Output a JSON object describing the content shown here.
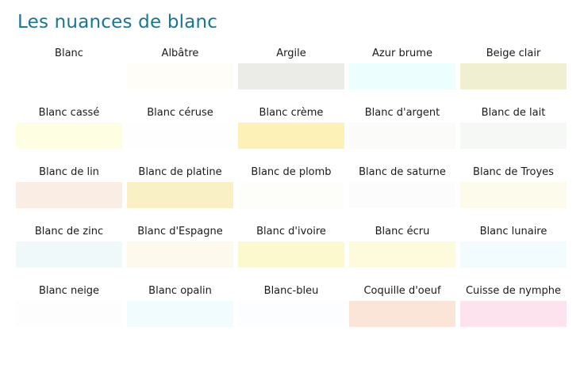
{
  "title": "Les nuances de blanc",
  "colors": {
    "title": "#1A7492",
    "label": "#1A1A1A",
    "background": "#FFFFFF"
  },
  "swatches": [
    {
      "name": "Blanc",
      "hex": "#FFFFFF"
    },
    {
      "name": "Albâtre",
      "hex": "#FEFDF8"
    },
    {
      "name": "Argile",
      "hex": "#EBEBE7"
    },
    {
      "name": "Azur brume",
      "hex": "#EDFEFF"
    },
    {
      "name": "Beige clair",
      "hex": "#F0EFD1"
    },
    {
      "name": "Blanc cassé",
      "hex": "#FEFEE2"
    },
    {
      "name": "Blanc céruse",
      "hex": "#FEFEFE"
    },
    {
      "name": "Blanc crème",
      "hex": "#FDF1B7"
    },
    {
      "name": "Blanc d'argent",
      "hex": "#FBFBF9"
    },
    {
      "name": "Blanc de lait",
      "hex": "#F6F8F6"
    },
    {
      "name": "Blanc de lin",
      "hex": "#FAEEE4"
    },
    {
      "name": "Blanc de platine",
      "hex": "#FAF0C5"
    },
    {
      "name": "Blanc de plomb",
      "hex": "#FDFDF9"
    },
    {
      "name": "Blanc de saturne",
      "hex": "#FBFCFB"
    },
    {
      "name": "Blanc de Troyes",
      "hex": "#FDFBEC"
    },
    {
      "name": "Blanc de zinc",
      "hex": "#EFF9F9"
    },
    {
      "name": "Blanc d'Espagne",
      "hex": "#FDF9EC"
    },
    {
      "name": "Blanc d'ivoire",
      "hex": "#FDF9CF"
    },
    {
      "name": "Blanc écru",
      "hex": "#FDFBDC"
    },
    {
      "name": "Blanc lunaire",
      "hex": "#F2FBFE"
    },
    {
      "name": "Blanc neige",
      "hex": "#FDFDFD"
    },
    {
      "name": "Blanc opalin",
      "hex": "#F0FCFE"
    },
    {
      "name": "Blanc-bleu",
      "hex": "#FBFDFE"
    },
    {
      "name": "Coquille d'oeuf",
      "hex": "#FBE5D8"
    },
    {
      "name": "Cuisse de nymphe",
      "hex": "#FCE3EE"
    }
  ],
  "chart_data": {
    "type": "table",
    "title": "Les nuances de blanc",
    "columns": 5,
    "rows": 5,
    "legend_position": "none",
    "entries": [
      {
        "label": "Blanc",
        "value": "#FFFFFF"
      },
      {
        "label": "Albâtre",
        "value": "#FEFDF8"
      },
      {
        "label": "Argile",
        "value": "#EBEBE7"
      },
      {
        "label": "Azur brume",
        "value": "#EDFEFF"
      },
      {
        "label": "Beige clair",
        "value": "#F0EFD1"
      },
      {
        "label": "Blanc cassé",
        "value": "#FEFEE2"
      },
      {
        "label": "Blanc céruse",
        "value": "#FEFEFE"
      },
      {
        "label": "Blanc crème",
        "value": "#FDF1B7"
      },
      {
        "label": "Blanc d'argent",
        "value": "#FBFBF9"
      },
      {
        "label": "Blanc de lait",
        "value": "#F6F8F6"
      },
      {
        "label": "Blanc de lin",
        "value": "#FAEEE4"
      },
      {
        "label": "Blanc de platine",
        "value": "#FAF0C5"
      },
      {
        "label": "Blanc de plomb",
        "value": "#FDFDF9"
      },
      {
        "label": "Blanc de saturne",
        "value": "#FBFCFB"
      },
      {
        "label": "Blanc de Troyes",
        "value": "#FDFBEC"
      },
      {
        "label": "Blanc de zinc",
        "value": "#EFF9F9"
      },
      {
        "label": "Blanc d'Espagne",
        "value": "#FDF9EC"
      },
      {
        "label": "Blanc d'ivoire",
        "value": "#FDF9CF"
      },
      {
        "label": "Blanc écru",
        "value": "#FDFBDC"
      },
      {
        "label": "Blanc lunaire",
        "value": "#F2FBFE"
      },
      {
        "label": "Blanc neige",
        "value": "#FDFDFD"
      },
      {
        "label": "Blanc opalin",
        "value": "#F0FCFE"
      },
      {
        "label": "Blanc-bleu",
        "value": "#FBFDFE"
      },
      {
        "label": "Coquille d'oeuf",
        "value": "#FBE5D8"
      },
      {
        "label": "Cuisse de nymphe",
        "value": "#FCE3EE"
      }
    ]
  }
}
